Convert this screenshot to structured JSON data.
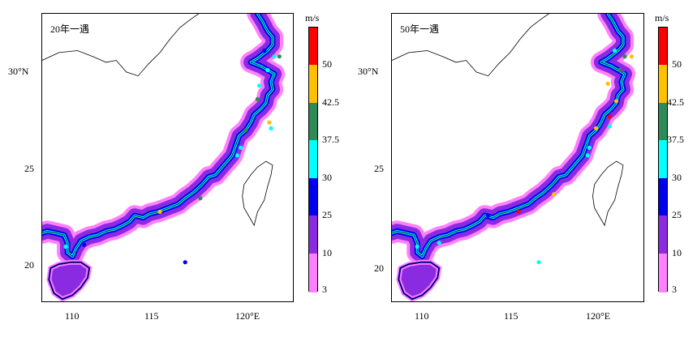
{
  "panels": [
    {
      "id": "p1",
      "title": "20年一遇",
      "x_ticks": [
        "110",
        "115",
        "120°E"
      ],
      "y_ticks": [
        "30°N",
        "25",
        "20"
      ],
      "stations": [
        {
          "lon": 121.4,
          "lat": 31.0,
          "color": "#0000ee"
        },
        {
          "lon": 122.3,
          "lat": 30.7,
          "color": "#2e8b57"
        },
        {
          "lon": 122.0,
          "lat": 30.7,
          "color": "#00ffff"
        },
        {
          "lon": 121.6,
          "lat": 30.0,
          "color": "#00ffff"
        },
        {
          "lon": 121.1,
          "lat": 29.2,
          "color": "#00ffff"
        },
        {
          "lon": 121.0,
          "lat": 28.5,
          "color": "#2e8b57"
        },
        {
          "lon": 121.7,
          "lat": 27.3,
          "color": "#ffc000"
        },
        {
          "lon": 121.8,
          "lat": 27.0,
          "color": "#00ffff"
        },
        {
          "lon": 120.3,
          "lat": 26.9,
          "color": "#2e8b57"
        },
        {
          "lon": 120.0,
          "lat": 26.0,
          "color": "#00ffff"
        },
        {
          "lon": 119.8,
          "lat": 25.6,
          "color": "#00ffff"
        },
        {
          "lon": 117.6,
          "lat": 23.4,
          "color": "#2e8b57"
        },
        {
          "lon": 116.7,
          "lat": 20.1,
          "color": "#0000ee"
        },
        {
          "lon": 110.7,
          "lat": 21.0,
          "color": "#0000ee"
        },
        {
          "lon": 109.6,
          "lat": 20.9,
          "color": "#00ffff"
        },
        {
          "lon": 115.2,
          "lat": 22.7,
          "color": "#ffc000"
        }
      ]
    },
    {
      "id": "p2",
      "title": "50年一遇",
      "x_ticks": [
        "110",
        "115",
        "120°E"
      ],
      "y_ticks": [
        "30°N",
        "25",
        "20"
      ],
      "stations": [
        {
          "lon": 121.4,
          "lat": 31.0,
          "color": "#00ffff"
        },
        {
          "lon": 122.0,
          "lat": 30.7,
          "color": "#2e8b57"
        },
        {
          "lon": 122.4,
          "lat": 30.7,
          "color": "#ffc000"
        },
        {
          "lon": 121.7,
          "lat": 30.0,
          "color": "#2e8b57"
        },
        {
          "lon": 121.9,
          "lat": 30.0,
          "color": "#8a2be2"
        },
        {
          "lon": 121.0,
          "lat": 29.3,
          "color": "#ffc000"
        },
        {
          "lon": 121.5,
          "lat": 28.4,
          "color": "#ffc000"
        },
        {
          "lon": 121.1,
          "lat": 27.6,
          "color": "#ff0000"
        },
        {
          "lon": 121.1,
          "lat": 27.1,
          "color": "#00ffff"
        },
        {
          "lon": 120.3,
          "lat": 27.0,
          "color": "#ffc000"
        },
        {
          "lon": 119.9,
          "lat": 26.0,
          "color": "#00ffff"
        },
        {
          "lon": 119.8,
          "lat": 25.6,
          "color": "#00ffff"
        },
        {
          "lon": 117.8,
          "lat": 23.6,
          "color": "#ffc000"
        },
        {
          "lon": 116.9,
          "lat": 20.1,
          "color": "#00ffff"
        },
        {
          "lon": 115.7,
          "lat": 22.7,
          "color": "#ff0000"
        },
        {
          "lon": 111.0,
          "lat": 21.1,
          "color": "#00ffff"
        },
        {
          "lon": 109.7,
          "lat": 20.9,
          "color": "#00ffff"
        },
        {
          "lon": 113.9,
          "lat": 22.5,
          "color": "#0000ee"
        }
      ]
    }
  ],
  "colorbar": {
    "unit": "m/s",
    "labels": [
      "50",
      "42.5",
      "37.5",
      "30",
      "25",
      "10",
      "3"
    ],
    "colors": [
      "#ff0000",
      "#ffc000",
      "#2e8b57",
      "#00ffff",
      "#0000ee",
      "#8a2be2",
      "#ff80ff"
    ]
  },
  "colors": {
    "level_3_10": "#ff80ff",
    "level_10_25": "#8a2be2",
    "level_25_30": "#0000ee",
    "level_30_37_5": "#00ffff"
  }
}
